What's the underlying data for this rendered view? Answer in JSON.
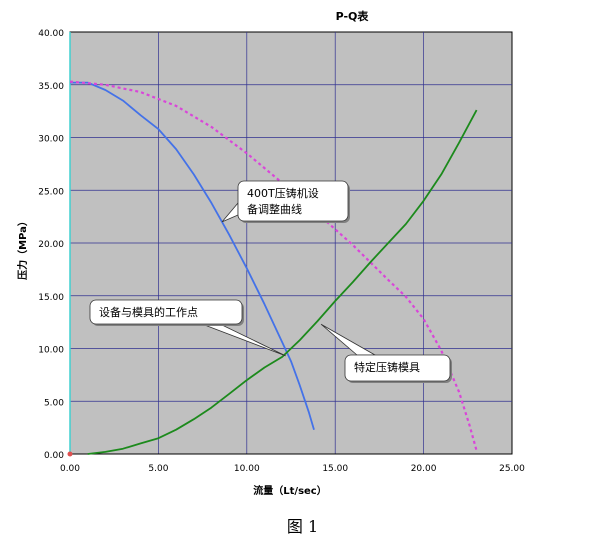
{
  "caption": "图 1",
  "chart_data": {
    "type": "line",
    "title": "P-Q表",
    "xlabel": "流量（Lt/sec）",
    "ylabel": "压力（MPa）",
    "xlim": [
      0,
      25
    ],
    "ylim": [
      0,
      40
    ],
    "x_ticks": [
      "0.00",
      "5.00",
      "10.00",
      "15.00",
      "20.00",
      "25.00"
    ],
    "y_ticks": [
      "0.00",
      "5.00",
      "10.00",
      "15.00",
      "20.00",
      "25.00",
      "30.00",
      "35.00",
      "40.00"
    ],
    "grid": true,
    "series": [
      {
        "name": "400T压铸机设备调整曲线",
        "color": "#4472e8",
        "style": "solid",
        "points": [
          [
            0,
            35.2
          ],
          [
            1,
            35.2
          ],
          [
            2,
            34.5
          ],
          [
            3,
            33.5
          ],
          [
            4,
            32.1
          ],
          [
            5,
            30.8
          ],
          [
            6,
            28.9
          ],
          [
            7,
            26.5
          ],
          [
            8,
            23.8
          ],
          [
            9,
            20.8
          ],
          [
            10,
            17.6
          ],
          [
            11,
            14.2
          ],
          [
            12,
            10.6
          ],
          [
            12.5,
            8.8
          ],
          [
            13,
            6.5
          ],
          [
            13.5,
            4.0
          ],
          [
            13.8,
            2.3
          ]
        ]
      },
      {
        "name": "",
        "color": "#d946d9",
        "style": "dotted",
        "points": [
          [
            0,
            35.3
          ],
          [
            2,
            35.0
          ],
          [
            4,
            34.3
          ],
          [
            6,
            33.0
          ],
          [
            8,
            31.0
          ],
          [
            10,
            28.5
          ],
          [
            12,
            25.7
          ],
          [
            14,
            22.8
          ],
          [
            16,
            19.8
          ],
          [
            18,
            16.5
          ],
          [
            19,
            14.9
          ],
          [
            20,
            12.8
          ],
          [
            21,
            9.8
          ],
          [
            22,
            5.9
          ],
          [
            22.6,
            2.7
          ],
          [
            23,
            0.3
          ]
        ]
      },
      {
        "name": "特定压铸模具",
        "color": "#1c8a1c",
        "style": "solid",
        "points": [
          [
            1,
            0
          ],
          [
            2,
            0.2
          ],
          [
            3,
            0.5
          ],
          [
            4,
            1.0
          ],
          [
            5,
            1.5
          ],
          [
            6,
            2.3
          ],
          [
            7,
            3.3
          ],
          [
            8,
            4.4
          ],
          [
            9,
            5.7
          ],
          [
            10,
            7.0
          ],
          [
            11,
            8.2
          ],
          [
            12,
            9.2
          ],
          [
            13,
            10.8
          ],
          [
            14,
            12.6
          ],
          [
            15,
            14.5
          ],
          [
            16,
            16.3
          ],
          [
            17,
            18.2
          ],
          [
            18,
            20.0
          ],
          [
            19,
            21.8
          ],
          [
            20,
            24.0
          ],
          [
            21,
            26.5
          ],
          [
            22,
            29.5
          ],
          [
            23,
            32.6
          ]
        ]
      }
    ],
    "annotations": [
      {
        "lines": [
          "400T压铸机设",
          "备调整曲线"
        ],
        "target": [
          8.6,
          22.0
        ]
      },
      {
        "lines": [
          "设备与模具的工作点"
        ],
        "target": [
          12.2,
          9.3
        ]
      },
      {
        "lines": [
          "特定压铸模具"
        ],
        "target": [
          14.2,
          12.3
        ]
      }
    ],
    "origin_marker_color": "#e05050"
  }
}
